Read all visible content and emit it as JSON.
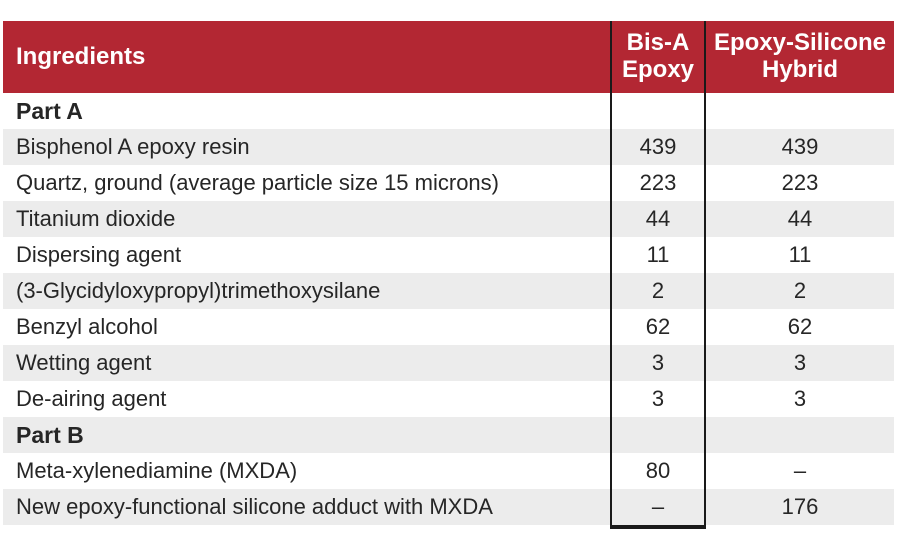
{
  "colors": {
    "header_bg": "#B32733",
    "header_text": "#FFFFFF",
    "body_text": "#262626",
    "row_shade": "#ECECEC",
    "rule": "#1A1A1A"
  },
  "table": {
    "header": {
      "ingredients": "Ingredients",
      "col_bis_a": "Bis-A Epoxy",
      "col_hybrid": "Epoxy-Silicone Hybrid"
    },
    "rows": [
      {
        "ingredient": "Part A",
        "bis_a": "",
        "hybrid": "",
        "section": true,
        "shaded": false
      },
      {
        "ingredient": "Bisphenol A epoxy resin",
        "bis_a": "439",
        "hybrid": "439",
        "section": false,
        "shaded": true
      },
      {
        "ingredient": "Quartz, ground (average particle size 15 microns)",
        "bis_a": "223",
        "hybrid": "223",
        "section": false,
        "shaded": false
      },
      {
        "ingredient": "Titanium dioxide",
        "bis_a": "44",
        "hybrid": "44",
        "section": false,
        "shaded": true
      },
      {
        "ingredient": "Dispersing agent",
        "bis_a": "11",
        "hybrid": "11",
        "section": false,
        "shaded": false
      },
      {
        "ingredient": "(3-Glycidyloxypropyl)trimethoxysilane",
        "bis_a": "2",
        "hybrid": "2",
        "section": false,
        "shaded": true
      },
      {
        "ingredient": "Benzyl alcohol",
        "bis_a": "62",
        "hybrid": "62",
        "section": false,
        "shaded": false
      },
      {
        "ingredient": "Wetting agent",
        "bis_a": "3",
        "hybrid": "3",
        "section": false,
        "shaded": true
      },
      {
        "ingredient": "De-airing agent",
        "bis_a": "3",
        "hybrid": "3",
        "section": false,
        "shaded": false
      },
      {
        "ingredient": "Part B",
        "bis_a": "",
        "hybrid": "",
        "section": true,
        "shaded": true
      },
      {
        "ingredient": "Meta-xylenediamine (MXDA)",
        "bis_a": "80",
        "hybrid": "–",
        "section": false,
        "shaded": false
      },
      {
        "ingredient": "New epoxy-functional silicone adduct with MXDA",
        "bis_a": "–",
        "hybrid": "176",
        "section": false,
        "shaded": true
      }
    ]
  },
  "chart_data": {
    "type": "table",
    "title": "",
    "columns": [
      "Ingredients",
      "Bis-A Epoxy",
      "Epoxy-Silicone Hybrid"
    ],
    "rows": [
      [
        "Part A",
        "",
        ""
      ],
      [
        "Bisphenol A epoxy resin",
        "439",
        "439"
      ],
      [
        "Quartz, ground (average particle size 15 microns)",
        "223",
        "223"
      ],
      [
        "Titanium dioxide",
        "44",
        "44"
      ],
      [
        "Dispersing agent",
        "11",
        "11"
      ],
      [
        "(3-Glycidyloxypropyl)trimethoxysilane",
        "2",
        "2"
      ],
      [
        "Benzyl alcohol",
        "62",
        "62"
      ],
      [
        "Wetting agent",
        "3",
        "3"
      ],
      [
        "De-airing agent",
        "3",
        "3"
      ],
      [
        "Part B",
        "",
        ""
      ],
      [
        "Meta-xylenediamine (MXDA)",
        "80",
        "–"
      ],
      [
        "New epoxy-functional silicone adduct with MXDA",
        "–",
        "176"
      ]
    ],
    "layout": {
      "section_rows": [
        "Part A",
        "Part B"
      ],
      "shading": "alternating light-gray rows",
      "column_rules": "vertical black rules around Bis-A Epoxy column, black base rule under it"
    }
  }
}
